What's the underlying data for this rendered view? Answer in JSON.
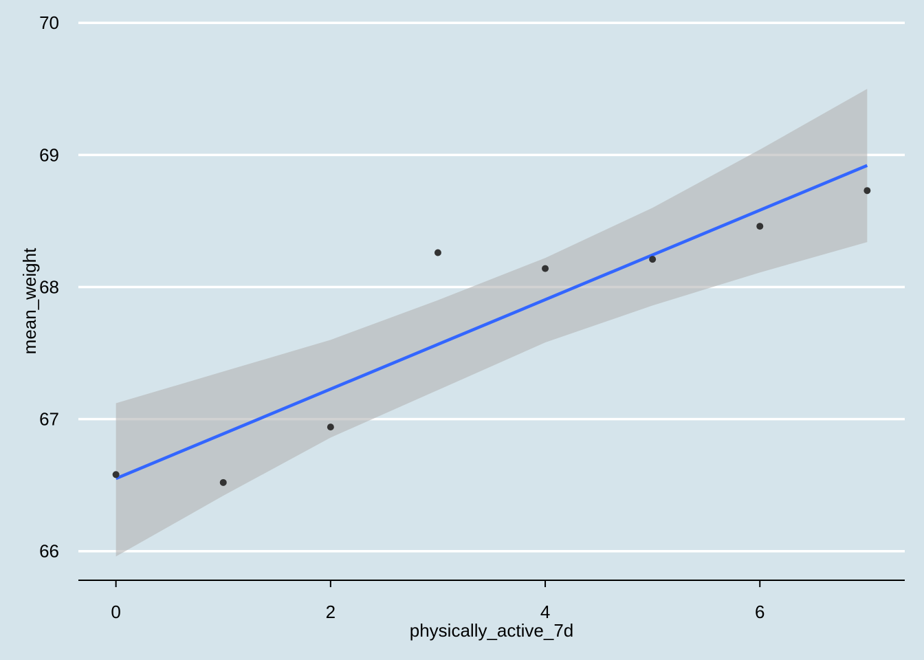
{
  "chart_data": {
    "type": "scatter",
    "title": "",
    "xlabel": "physically_active_7d",
    "ylabel": "mean_weight",
    "xlim": [
      -0.35,
      7.35
    ],
    "ylim": [
      65.78,
      70.1
    ],
    "x_ticks": [
      0,
      2,
      4,
      6
    ],
    "y_ticks": [
      66,
      67,
      68,
      69,
      70
    ],
    "grid": "horizontal-major",
    "legend": "none",
    "points": {
      "x": [
        0,
        1,
        2,
        3,
        4,
        5,
        6,
        7
      ],
      "y": [
        66.58,
        66.52,
        66.94,
        68.26,
        68.14,
        68.21,
        68.46,
        68.73
      ]
    },
    "fit_line": {
      "method": "linear",
      "x": [
        0,
        7
      ],
      "y": [
        66.55,
        68.92
      ]
    },
    "confidence_band": {
      "x": [
        0,
        1,
        2,
        3,
        4,
        5,
        6,
        7
      ],
      "lower": [
        65.96,
        66.42,
        66.86,
        67.22,
        67.58,
        67.86,
        68.11,
        68.34
      ],
      "upper": [
        67.12,
        67.36,
        67.6,
        67.9,
        68.22,
        68.6,
        69.04,
        69.5
      ]
    },
    "colors": {
      "background": "#d5e4eb",
      "grid": "#ffffff",
      "points": "#333333",
      "fit_line": "#3366ff",
      "band": "#b4b4b4"
    }
  }
}
